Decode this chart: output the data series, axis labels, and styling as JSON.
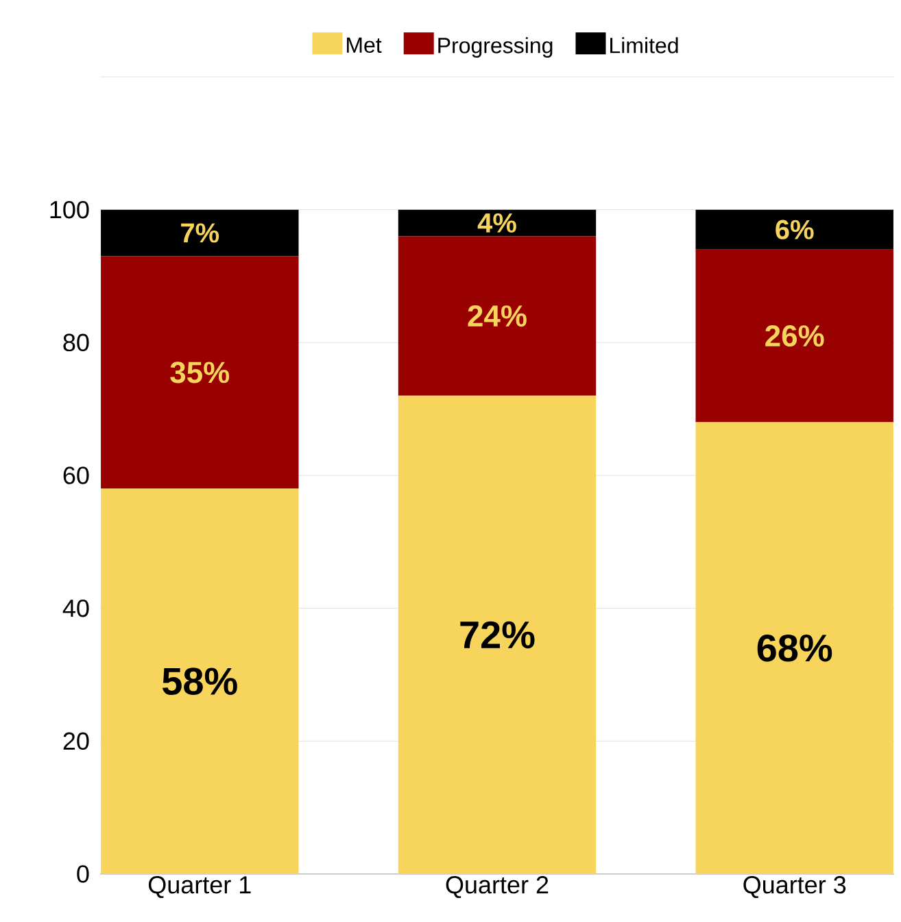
{
  "chart_data": {
    "type": "bar",
    "stacked": true,
    "categories": [
      "Quarter 1",
      "Quarter 2",
      "Quarter 3"
    ],
    "series": [
      {
        "name": "Met",
        "color": "#f7d55c",
        "values": [
          58,
          72,
          68
        ],
        "value_labels": [
          "58%",
          "72%",
          "68%"
        ]
      },
      {
        "name": "Progressing",
        "color": "#990000",
        "values": [
          35,
          24,
          26
        ],
        "value_labels": [
          "35%",
          "24%",
          "26%"
        ]
      },
      {
        "name": "Limited",
        "color": "#000000",
        "values": [
          7,
          4,
          6
        ],
        "value_labels": [
          "7%",
          "4%",
          "6%"
        ]
      }
    ],
    "ylim": [
      0,
      120
    ],
    "yticks": [
      0,
      20,
      40,
      60,
      80,
      100,
      {
        "value": 120,
        "label": null
      }
    ],
    "grid": "y",
    "legend": "top"
  }
}
